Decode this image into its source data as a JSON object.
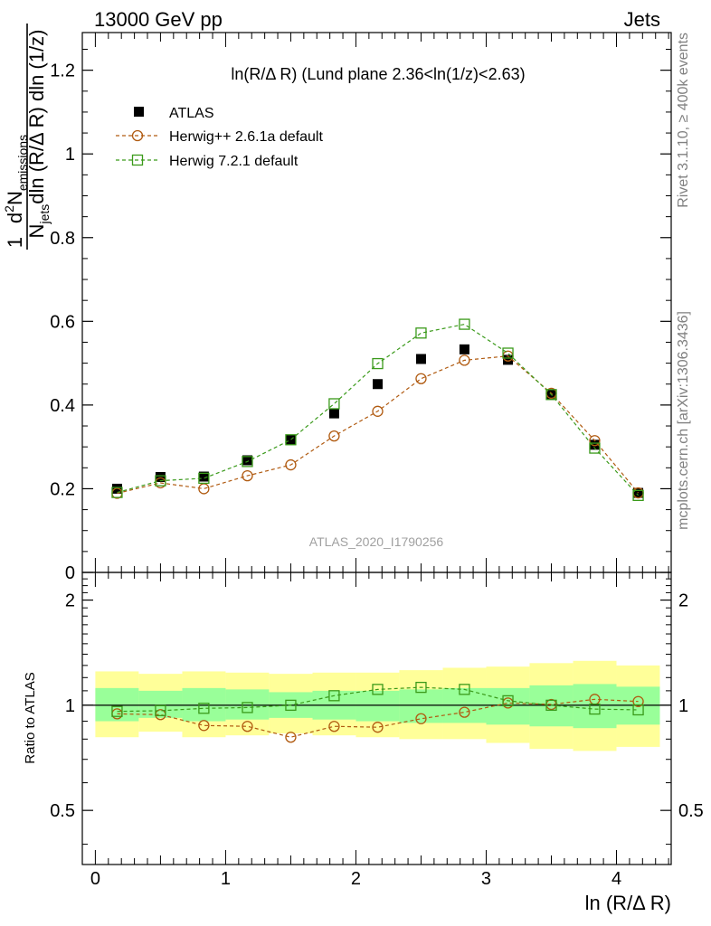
{
  "header": {
    "left": "13000 GeV pp",
    "right": "Jets"
  },
  "side_labels": {
    "rivet": "Rivet 3.1.10, ≥ 400k events",
    "mcplots": "mcplots.cern.ch [arXiv:1306.3436]"
  },
  "chart_data": [
    {
      "type": "scatter",
      "title": "ln(R/Δ R) (Lund plane 2.36<ln(1/z)<2.63)",
      "ylabel_parts": {
        "prefix": "1",
        "njets": "N",
        "njets_sub": "jets",
        "den_rest": "dln (R/Δ R) dln (1/z)",
        "num_d": "d",
        "num_sup": "2",
        "num_n": "N",
        "num_sub": "emissions"
      },
      "watermark": "ATLAS_2020_I1790256",
      "xlim": [
        -0.1,
        4.42
      ],
      "ylim": [
        0,
        1.29
      ],
      "yticks": [
        0,
        0.2,
        0.4,
        0.6,
        0.8,
        1,
        1.2
      ],
      "ytick_labels": [
        "0",
        "0.2",
        "0.4",
        "0.6",
        "0.8",
        "1",
        "1.2"
      ],
      "legend_placement": "top-left",
      "x": [
        0.167,
        0.5,
        0.833,
        1.167,
        1.5,
        1.833,
        2.167,
        2.5,
        2.833,
        3.167,
        3.5,
        3.833,
        4.167
      ],
      "series": [
        {
          "name": "ATLAS",
          "color": "#000000",
          "marker": "filled-square",
          "values": [
            0.2,
            0.228,
            0.229,
            0.268,
            0.317,
            0.38,
            0.45,
            0.51,
            0.533,
            0.508,
            0.425,
            0.305,
            0.19
          ]
        },
        {
          "name": "Herwig++ 2.6.1a default",
          "color": "#b05a10",
          "marker": "open-circle",
          "values": [
            0.189,
            0.214,
            0.2,
            0.231,
            0.257,
            0.326,
            0.385,
            0.463,
            0.507,
            0.517,
            0.428,
            0.315,
            0.19
          ]
        },
        {
          "name": "Herwig 7.2.1 default",
          "color": "#3a9a1a",
          "marker": "open-square",
          "values": [
            0.191,
            0.219,
            0.225,
            0.265,
            0.317,
            0.403,
            0.499,
            0.572,
            0.593,
            0.524,
            0.425,
            0.297,
            0.184
          ]
        }
      ]
    },
    {
      "type": "scatter",
      "ylabel": "Ratio to ATLAS",
      "xlabel": "ln (R/Δ R)",
      "xlim": [
        -0.1,
        4.42
      ],
      "ylim": [
        0.35,
        2.4
      ],
      "log_y": true,
      "yticks": [
        0.5,
        1,
        2
      ],
      "ytick_labels": [
        "0.5",
        "1",
        "2"
      ],
      "xticks": [
        0,
        1,
        2,
        3,
        4
      ],
      "xtick_labels": [
        "0",
        "1",
        "2",
        "3",
        "4"
      ],
      "x_edges": [
        0,
        0.333,
        0.667,
        1.0,
        1.333,
        1.667,
        2.0,
        2.333,
        2.667,
        3.0,
        3.333,
        3.667,
        4.0,
        4.333
      ],
      "band_inner": [
        [
          0.9,
          1.12
        ],
        [
          0.92,
          1.1
        ],
        [
          0.9,
          1.12
        ],
        [
          0.91,
          1.11
        ],
        [
          0.92,
          1.09
        ],
        [
          0.91,
          1.1
        ],
        [
          0.9,
          1.1
        ],
        [
          0.89,
          1.11
        ],
        [
          0.89,
          1.12
        ],
        [
          0.88,
          1.12
        ],
        [
          0.87,
          1.14
        ],
        [
          0.86,
          1.15
        ],
        [
          0.88,
          1.13
        ]
      ],
      "band_outer": [
        [
          0.81,
          1.25
        ],
        [
          0.84,
          1.23
        ],
        [
          0.81,
          1.25
        ],
        [
          0.82,
          1.24
        ],
        [
          0.83,
          1.23
        ],
        [
          0.82,
          1.24
        ],
        [
          0.81,
          1.24
        ],
        [
          0.8,
          1.26
        ],
        [
          0.8,
          1.28
        ],
        [
          0.78,
          1.29
        ],
        [
          0.75,
          1.32
        ],
        [
          0.74,
          1.34
        ],
        [
          0.76,
          1.3
        ]
      ],
      "band_colors": {
        "inner": "#99ff99",
        "outer": "#ffff99"
      },
      "x": [
        0.167,
        0.5,
        0.833,
        1.167,
        1.5,
        1.833,
        2.167,
        2.5,
        2.833,
        3.167,
        3.5,
        3.833,
        4.167
      ],
      "series": [
        {
          "name": "Herwig++ 2.6.1a default",
          "color": "#b05a10",
          "marker": "open-circle",
          "values": [
            0.945,
            0.94,
            0.875,
            0.87,
            0.81,
            0.87,
            0.865,
            0.915,
            0.955,
            1.015,
            1.005,
            1.04,
            1.025
          ]
        },
        {
          "name": "Herwig 7.2.1 default",
          "color": "#3a9a1a",
          "marker": "open-square",
          "values": [
            0.96,
            0.965,
            0.98,
            0.985,
            1.0,
            1.065,
            1.11,
            1.125,
            1.11,
            1.03,
            1.0,
            0.975,
            0.97
          ]
        }
      ]
    }
  ]
}
